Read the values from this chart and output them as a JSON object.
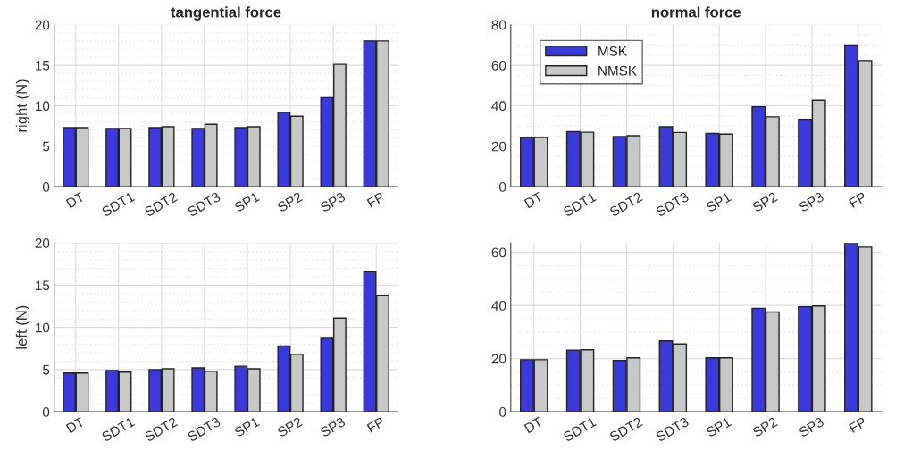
{
  "chart_data": [
    {
      "type": "bar",
      "title": "tangential force",
      "ylabel": "right (N)",
      "categories": [
        "DT",
        "SDT1",
        "SDT2",
        "SDT3",
        "SP1",
        "SP2",
        "SP3",
        "FP"
      ],
      "ylim": [
        0,
        20
      ],
      "yticks": [
        0,
        5,
        10,
        15,
        20
      ],
      "grid": true,
      "series": [
        {
          "color": "#3a3adc",
          "values": [
            7.3,
            7.2,
            7.3,
            7.2,
            7.3,
            9.2,
            11.0,
            18.0
          ]
        },
        {
          "color": "#c8c8c8",
          "values": [
            7.3,
            7.2,
            7.4,
            7.7,
            7.4,
            8.7,
            15.1,
            18.0
          ]
        }
      ]
    },
    {
      "type": "bar",
      "title": "normal force",
      "categories": [
        "DT",
        "SDT1",
        "SDT2",
        "SDT3",
        "SP1",
        "SP2",
        "SP3",
        "FP"
      ],
      "ylim": [
        0,
        80
      ],
      "yticks": [
        0,
        20,
        40,
        60,
        80
      ],
      "grid": true,
      "legend": "top left",
      "series": [
        {
          "name": "MSK",
          "color": "#3a3adc",
          "values": [
            24.3,
            27.2,
            24.8,
            29.6,
            26.3,
            39.5,
            33.3,
            70.0
          ]
        },
        {
          "name": "NMSK",
          "color": "#c8c8c8",
          "values": [
            24.3,
            26.9,
            25.2,
            26.8,
            26.0,
            34.5,
            42.7,
            62.3
          ]
        }
      ]
    },
    {
      "type": "bar",
      "ylabel": "left (N)",
      "categories": [
        "DT",
        "SDT1",
        "SDT2",
        "SDT3",
        "SP1",
        "SP2",
        "SP3",
        "FP"
      ],
      "ylim": [
        0,
        20
      ],
      "yticks": [
        0,
        5,
        10,
        15,
        20
      ],
      "grid": true,
      "series": [
        {
          "color": "#3a3adc",
          "values": [
            4.6,
            4.9,
            5.0,
            5.2,
            5.4,
            7.8,
            8.7,
            16.6
          ]
        },
        {
          "color": "#c8c8c8",
          "values": [
            4.6,
            4.7,
            5.1,
            4.8,
            5.1,
            6.8,
            11.1,
            13.8
          ]
        }
      ]
    },
    {
      "type": "bar",
      "categories": [
        "DT",
        "SDT1",
        "SDT2",
        "SDT3",
        "SP1",
        "SP2",
        "SP3",
        "FP"
      ],
      "ylim": [
        0,
        63.5
      ],
      "yticks": [
        0,
        20,
        40,
        60
      ],
      "grid": true,
      "series": [
        {
          "color": "#3a3adc",
          "values": [
            19.6,
            23.2,
            19.3,
            26.7,
            20.3,
            38.9,
            39.5,
            63.5
          ]
        },
        {
          "color": "#c8c8c8",
          "values": [
            19.6,
            23.3,
            20.3,
            25.5,
            20.3,
            37.5,
            39.8,
            61.9
          ]
        }
      ]
    }
  ]
}
